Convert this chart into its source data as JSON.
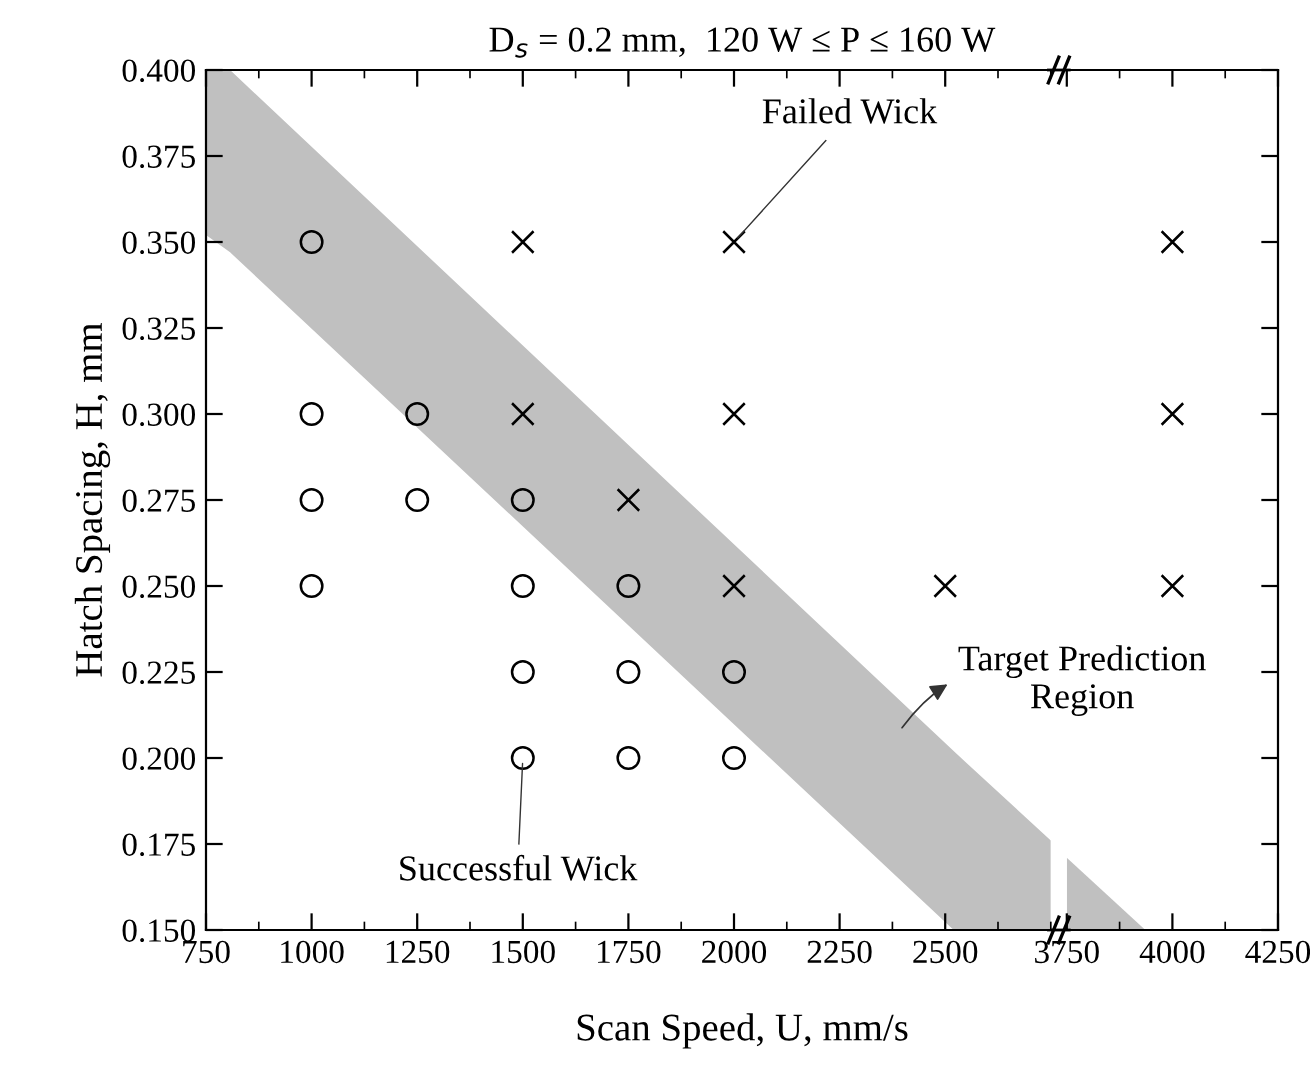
{
  "chart_data": [
    {
      "type": "scatter",
      "title": "D$_{s}$ = 0.2 mm,  120 W ≤ P ≤ 160 W",
      "xlabel": "Scan Speed, U, mm/s",
      "ylabel": "Hatch Spacing, H, mm",
      "xlim": [
        750,
        2750
      ],
      "xticks": [
        750,
        1000,
        1250,
        1500,
        1750,
        2000,
        2250,
        2500
      ],
      "ylim": [
        0.15,
        0.4
      ],
      "yticks": [
        {
          "value": 0.15,
          "label": "0.150"
        },
        {
          "value": 0.175,
          "label": "0.175"
        },
        {
          "value": 0.2,
          "label": "0.200"
        },
        {
          "value": 0.225,
          "label": "0.225"
        },
        {
          "value": 0.25,
          "label": "0.250"
        },
        {
          "value": 0.275,
          "label": "0.275"
        },
        {
          "value": 0.3,
          "label": "0.300"
        },
        {
          "value": 0.325,
          "label": "0.325"
        },
        {
          "value": 0.35,
          "label": "0.350"
        },
        {
          "value": 0.375,
          "label": "0.375"
        },
        {
          "value": 0.4,
          "label": "0.400"
        }
      ],
      "grid": false,
      "legend": false,
      "series": [
        {
          "type": "area",
          "color": "#c0c0c0",
          "x": [
            750,
            807,
            2520,
            2750
          ],
          "values": [
            null,
            null,
            null,
            null
          ],
          "upper": [
            0.4,
            0.4,
            0.202,
            0.176
          ],
          "lower": [
            0.352,
            0.347,
            0.15,
            0.15
          ]
        },
        {
          "color": "#000000",
          "marker": "circle",
          "x": [
            1000,
            1000,
            1000,
            1000,
            1250,
            1250,
            1500,
            1500,
            1500,
            1500,
            1750,
            1750,
            1750,
            2000,
            2000
          ],
          "values": [
            0.35,
            0.3,
            0.275,
            0.25,
            0.3,
            0.275,
            0.275,
            0.25,
            0.225,
            0.2,
            0.25,
            0.225,
            0.2,
            0.225,
            0.2
          ]
        },
        {
          "color": "#000000",
          "marker": "cross",
          "x": [
            1500,
            1500,
            1750,
            2000,
            2000,
            2000,
            2500
          ],
          "values": [
            0.35,
            0.3,
            0.275,
            0.35,
            0.3,
            0.25,
            0.25
          ]
        }
      ],
      "annotations": [
        {
          "text": "Failed Wick",
          "x": 2000,
          "y": 0.35
        },
        {
          "text": "Successful Wick",
          "x": 1500,
          "y": 0.2
        },
        "Target Prediction\nRegion"
      ]
    },
    {
      "type": "scatter",
      "xlim": [
        3750,
        4250
      ],
      "xticks": [
        3750,
        4000,
        4250
      ],
      "ylim": [
        0.15,
        0.4
      ],
      "tick_labels": "x",
      "grid": false,
      "legend": false,
      "series": [
        {
          "type": "area",
          "color": "#c0c0c0",
          "x": [
            3750,
            3936
          ],
          "values": [
            null,
            null
          ],
          "upper": [
            0.171,
            0.15
          ],
          "lower": [
            0.15,
            0.15
          ]
        },
        {
          "color": "#000000",
          "marker": "cross",
          "x": [
            4000,
            4000,
            4000
          ],
          "values": [
            0.35,
            0.3,
            0.25
          ]
        }
      ]
    }
  ]
}
